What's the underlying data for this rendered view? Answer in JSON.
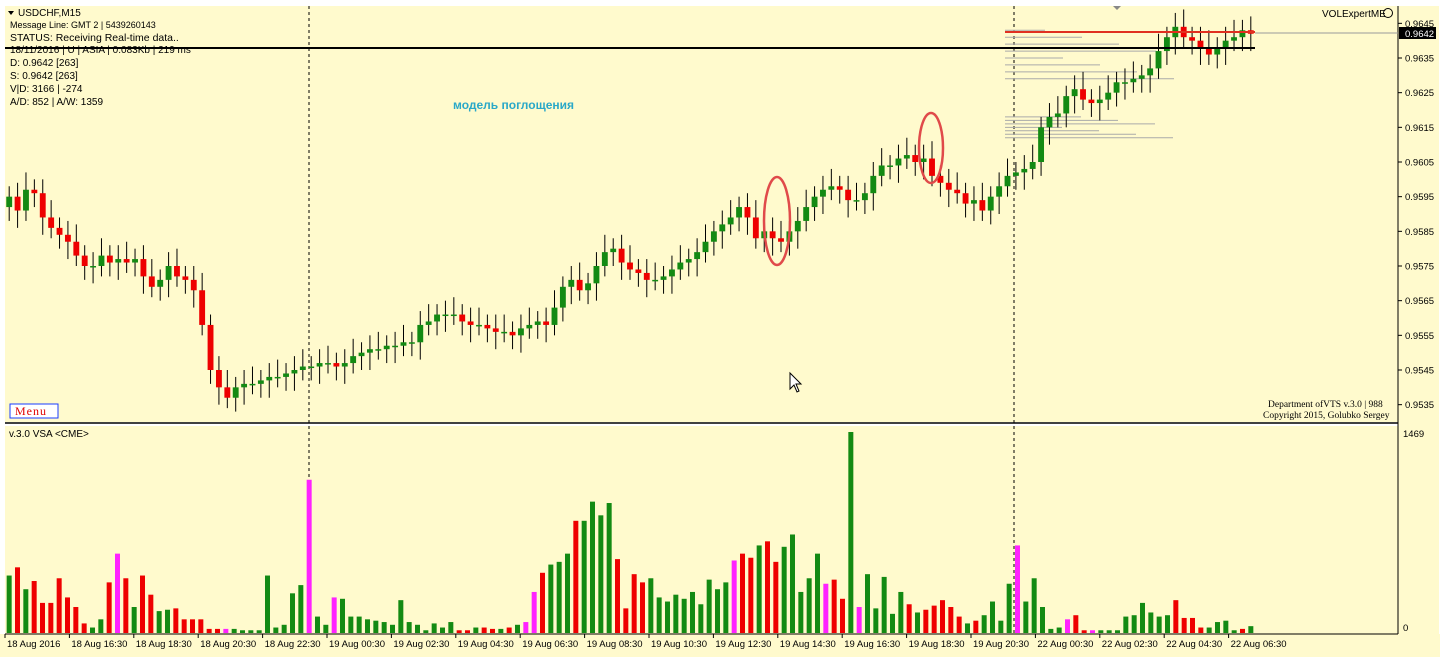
{
  "window": {
    "symbol_title": "USDCHF,M15",
    "expert_name": "VOLExpertME"
  },
  "info_panel": {
    "message_line": "Message Line: GMT 2 | 5439260143",
    "status": "STATUS:  Receiving Real-time data..",
    "session": "18/11/2016 | U | ASIA | 0.083Kb | 219 ms",
    "d": "D: 0.9642  [263]",
    "s": "S: 0.9642  [263]",
    "vd": "V|D: 3166 | -274",
    "ad": "A/D: 852 | A/W: 1359"
  },
  "menu_label": "Menu",
  "annotation": "модель поглощения",
  "copyright": {
    "line1": "Department ofVTS  v.3.0 | 988",
    "line2": "Copyright 2015, Golubko Sergey"
  },
  "indicator_title": "v.3.0 VSA <CME>",
  "price_axis": {
    "current_price": "0.9642",
    "volume_top_label": "1469",
    "volume_bottom_label": "0"
  },
  "colors": {
    "background": "#fffacd",
    "bull": "#138a13",
    "bear": "#ee0000",
    "climax": "#ff22ff",
    "ellipse": "#e04a4a",
    "resistance": "#e03020"
  },
  "chart_data": [
    {
      "type": "candlestick",
      "title": "USDCHF,M15",
      "ylim": [
        0.953,
        0.965
      ],
      "y_ticks": [
        "0.9645",
        "0.9635",
        "0.9625",
        "0.9615",
        "0.9605",
        "0.9595",
        "0.9585",
        "0.9575",
        "0.9565",
        "0.9555",
        "0.9545",
        "0.9535"
      ],
      "x_ticks": [
        "18 Aug 2016",
        "18 Aug 16:30",
        "18 Aug 18:30",
        "18 Aug 20:30",
        "18 Aug 22:30",
        "19 Aug 00:30",
        "19 Aug 02:30",
        "19 Aug 04:30",
        "19 Aug 06:30",
        "19 Aug 08:30",
        "19 Aug 10:30",
        "19 Aug 12:30",
        "19 Aug 14:30",
        "19 Aug 16:30",
        "19 Aug 18:30",
        "19 Aug 20:30",
        "22 Aug 00:30",
        "22 Aug 02:30",
        "22 Aug 04:30",
        "22 Aug 06:30"
      ],
      "close_path": [
        0.9595,
        0.9591,
        0.9597,
        0.9596,
        0.9589,
        0.9586,
        0.9584,
        0.9582,
        0.9578,
        0.9575,
        0.9575,
        0.9578,
        0.9576,
        0.9577,
        0.9576,
        0.9577,
        0.9572,
        0.9569,
        0.9571,
        0.9575,
        0.9572,
        0.9571,
        0.9568,
        0.9558,
        0.9545,
        0.954,
        0.9537,
        0.954,
        0.9541,
        0.9541,
        0.9542,
        0.9543,
        0.9543,
        0.9544,
        0.9545,
        0.9546,
        0.9546,
        0.9547,
        0.9547,
        0.9546,
        0.9547,
        0.9549,
        0.955,
        0.9551,
        0.9551,
        0.9552,
        0.9552,
        0.9553,
        0.9553,
        0.9558,
        0.9559,
        0.9561,
        0.9561,
        0.9561,
        0.9559,
        0.9558,
        0.9558,
        0.9557,
        0.9556,
        0.9556,
        0.9555,
        0.9557,
        0.9558,
        0.9559,
        0.9558,
        0.9563,
        0.9569,
        0.9571,
        0.9568,
        0.957,
        0.9575,
        0.9579,
        0.958,
        0.9576,
        0.9574,
        0.9573,
        0.9571,
        0.9571,
        0.9572,
        0.9574,
        0.9576,
        0.9577,
        0.9579,
        0.9582,
        0.9585,
        0.9587,
        0.9589,
        0.9592,
        0.9589,
        0.9583,
        0.9585,
        0.9583,
        0.9582,
        0.9585,
        0.9588,
        0.9592,
        0.9595,
        0.9597,
        0.9598,
        0.9597,
        0.9594,
        0.9594,
        0.9596,
        0.9601,
        0.9604,
        0.9604,
        0.9606,
        0.9607,
        0.9605,
        0.9606,
        0.9601,
        0.9599,
        0.9597,
        0.9596,
        0.9593,
        0.9594,
        0.9591,
        0.9595,
        0.9598,
        0.9601,
        0.9602,
        0.9603,
        0.9605,
        0.9615,
        0.9618,
        0.9619,
        0.9624,
        0.9626,
        0.9623,
        0.9622,
        0.9623,
        0.9625,
        0.9628,
        0.9628,
        0.9629,
        0.963,
        0.9632,
        0.9637,
        0.9641,
        0.9644,
        0.9641,
        0.964,
        0.9638,
        0.9636,
        0.9638,
        0.964,
        0.9641,
        0.9643,
        0.9642
      ]
    },
    {
      "type": "bar",
      "title": "v.3.0 VSA <CME>",
      "ylim": [
        0,
        1469
      ],
      "series": [
        {
          "name": "",
          "values": [
            420,
            480,
            320,
            380,
            220,
            220,
            400,
            260,
            190,
            70,
            40,
            100,
            370,
            580,
            400,
            190,
            420,
            280,
            160,
            170,
            180,
            100,
            100,
            100,
            30,
            30,
            30,
            30,
            20,
            20,
            20,
            420,
            40,
            60,
            290,
            350,
            1120,
            120,
            60,
            260,
            250,
            120,
            120,
            100,
            90,
            80,
            60,
            240,
            80,
            60,
            20,
            70,
            40,
            80,
            20,
            20,
            40,
            40,
            30,
            30,
            40,
            60,
            80,
            300,
            440,
            500,
            520,
            580,
            820,
            820,
            960,
            860,
            950,
            540,
            180,
            430,
            370,
            400,
            260,
            230,
            280,
            250,
            300,
            210,
            390,
            320,
            370,
            530,
            580,
            550,
            640,
            670,
            520,
            630,
            720,
            300,
            400,
            580,
            360,
            390,
            250,
            1469,
            190,
            430,
            180,
            410,
            140,
            300,
            210,
            150,
            170,
            200,
            240,
            190,
            120,
            70,
            90,
            130,
            230,
            90,
            360,
            640,
            230,
            400,
            190,
            30,
            40,
            100,
            130,
            20,
            20,
            20,
            20,
            20,
            120,
            130,
            220,
            150,
            120,
            130,
            240,
            110,
            110,
            40,
            40,
            80,
            90,
            20,
            30,
            50
          ]
        },
        {
          "name": "",
          "values": [
            0,
            0,
            0,
            0,
            0,
            0,
            0,
            0,
            0,
            0,
            0,
            0,
            0,
            0,
            0,
            0,
            0,
            0,
            0,
            0,
            0,
            0,
            0,
            0,
            0,
            0,
            0,
            0,
            0,
            0,
            0,
            0,
            0,
            0,
            0,
            0,
            0,
            0,
            0,
            0,
            0,
            0,
            0,
            0,
            0,
            0,
            0,
            0,
            0,
            0,
            0,
            0,
            0,
            0,
            0,
            0,
            0,
            0,
            0,
            0,
            0,
            0,
            0,
            0,
            0,
            0,
            0,
            0,
            0,
            0,
            0,
            0,
            0,
            0,
            0,
            0,
            0,
            0,
            0,
            0,
            0,
            0,
            0,
            0,
            0,
            0,
            0,
            0,
            0,
            0,
            0,
            0,
            0,
            0,
            0,
            0,
            0,
            0,
            0,
            0,
            0,
            0,
            0,
            0,
            0,
            0,
            0,
            0,
            0,
            0,
            0,
            0,
            0,
            0,
            0,
            0,
            0,
            0,
            0,
            0,
            0,
            0,
            0,
            0,
            0,
            0,
            0,
            0,
            0,
            0,
            0,
            0,
            0,
            0,
            0,
            0,
            0,
            0,
            0,
            0,
            0,
            0,
            0,
            0,
            0,
            0,
            0,
            0,
            0,
            0
          ]
        }
      ]
    }
  ]
}
